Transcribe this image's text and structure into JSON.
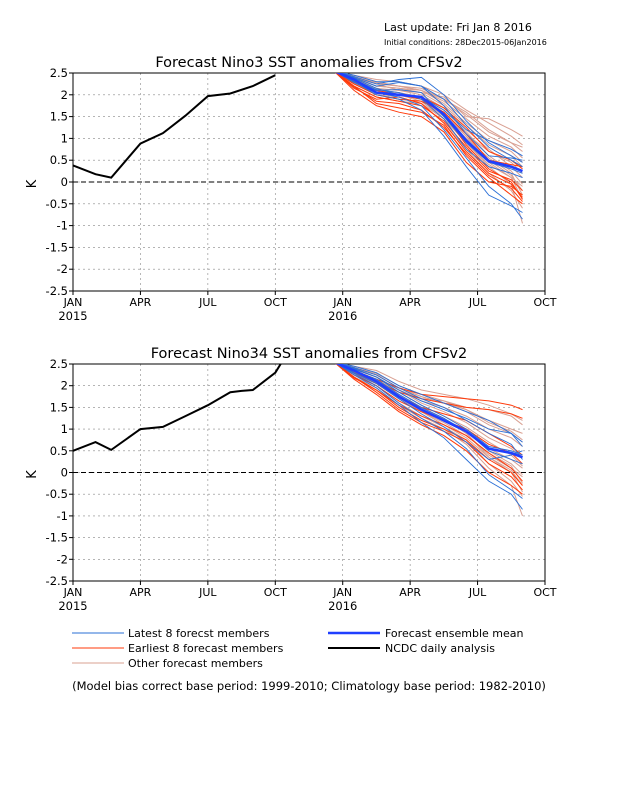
{
  "header": {
    "last_update": "Last update: Fri Jan 8 2016",
    "initial_condition": "Initial conditions: 28Dec2015-06Jan2016"
  },
  "colors": {
    "latest": "#2a6fd6",
    "earliest": "#ff3a0a",
    "other": "#d9a092",
    "mean": "#1f3fff",
    "obs": "#000000"
  },
  "chart_data": [
    {
      "type": "line",
      "title": "Forecast Nino3 SST anomalies from CFSv2",
      "ylabel": "K",
      "ylim": [
        -2.5,
        2.5
      ],
      "yticks": [
        -2.5,
        -2,
        -1.5,
        -1,
        -0.5,
        0,
        0.5,
        1,
        1.5,
        2,
        2.5
      ],
      "ytick_labels": [
        "-2.5",
        "-2",
        "-1.5",
        "-1",
        "-0.5",
        "0",
        "0.5",
        "1",
        "1.5",
        "2",
        "2.5"
      ],
      "xlim": [
        0,
        21
      ],
      "xticks": [
        0,
        3,
        6,
        9,
        12,
        15,
        18,
        21
      ],
      "xtick_labels": [
        "JAN",
        "APR",
        "JUL",
        "OCT",
        "JAN",
        "APR",
        "JUL",
        "OCT"
      ],
      "year_labels": [
        {
          "x": 0,
          "label": "2015"
        },
        {
          "x": 12,
          "label": "2016"
        }
      ],
      "zero_line": true,
      "grid": "dashed",
      "observed": {
        "name": "NCDC daily analysis",
        "x": [
          0,
          1,
          1.7,
          3,
          4,
          5,
          6,
          7,
          8,
          9
        ],
        "y": [
          0.38,
          0.18,
          0.1,
          0.88,
          1.12,
          1.52,
          1.97,
          2.03,
          2.2,
          2.45
        ]
      },
      "mean": {
        "name": "Forecast ensemble mean",
        "x": [
          11.6,
          12.5,
          13.5,
          14.5,
          15.5,
          16.5,
          17.5,
          18.5,
          19.5,
          20
        ],
        "y": [
          2.55,
          2.35,
          2.05,
          2.0,
          1.95,
          1.55,
          0.95,
          0.48,
          0.35,
          0.25
        ]
      },
      "latest": {
        "name": "Latest 8 forecst members",
        "x": [
          11.6,
          12.5,
          13.5,
          14.5,
          15.5,
          16.5,
          17.5,
          18.5,
          19.5,
          20
        ],
        "members": [
          [
            2.55,
            2.42,
            2.25,
            2.35,
            2.4,
            2.0,
            1.4,
            0.9,
            0.6,
            0.45
          ],
          [
            2.55,
            2.35,
            2.12,
            2.05,
            1.9,
            1.45,
            0.75,
            0.35,
            0.2,
            0.1
          ],
          [
            2.55,
            2.4,
            2.2,
            2.28,
            2.2,
            1.75,
            1.1,
            0.6,
            0.55,
            0.5
          ],
          [
            2.55,
            2.28,
            2.05,
            1.95,
            1.75,
            1.2,
            0.55,
            -0.1,
            -0.5,
            -0.85
          ],
          [
            2.55,
            2.38,
            2.15,
            2.0,
            1.95,
            1.65,
            1.2,
            0.95,
            0.75,
            0.6
          ],
          [
            2.55,
            2.3,
            2.0,
            1.9,
            1.65,
            1.05,
            0.35,
            -0.3,
            -0.55,
            -0.7
          ],
          [
            2.55,
            2.33,
            2.1,
            2.12,
            2.05,
            1.5,
            0.9,
            0.45,
            0.3,
            0.2
          ],
          [
            2.55,
            2.45,
            2.3,
            2.3,
            2.2,
            1.9,
            1.3,
            0.8,
            0.5,
            0.35
          ]
        ]
      },
      "earliest": {
        "name": "Earliest 8 forecast members",
        "x": [
          11.6,
          12.5,
          13.5,
          14.5,
          15.5,
          16.5,
          17.5,
          18.5,
          19.5,
          20
        ],
        "members": [
          [
            2.55,
            2.2,
            1.8,
            1.7,
            1.6,
            1.3,
            0.6,
            0.1,
            -0.3,
            -0.5
          ],
          [
            2.55,
            2.15,
            1.9,
            1.95,
            1.8,
            1.35,
            0.7,
            0.2,
            -0.05,
            -0.35
          ],
          [
            2.55,
            2.3,
            2.1,
            2.0,
            1.9,
            1.55,
            0.85,
            0.3,
            0.0,
            -0.4
          ],
          [
            2.55,
            2.1,
            1.75,
            1.6,
            1.5,
            1.15,
            0.45,
            0.0,
            -0.1,
            -0.3
          ],
          [
            2.55,
            2.25,
            2.0,
            1.9,
            1.85,
            1.6,
            1.1,
            0.5,
            0.4,
            0.35
          ],
          [
            2.55,
            2.2,
            1.95,
            1.85,
            1.75,
            1.4,
            0.8,
            0.25,
            0.05,
            -0.2
          ],
          [
            2.55,
            2.28,
            2.05,
            2.0,
            1.95,
            1.7,
            1.25,
            0.7,
            0.5,
            0.3
          ],
          [
            2.55,
            2.18,
            1.85,
            1.8,
            1.65,
            1.25,
            0.65,
            0.15,
            -0.15,
            -0.45
          ]
        ]
      },
      "other": {
        "name": "Other forecast members",
        "x": [
          11.6,
          12.5,
          13.5,
          14.5,
          15.5,
          16.5,
          17.5,
          18.5,
          19.5,
          20
        ],
        "members": [
          [
            2.55,
            2.45,
            2.3,
            2.2,
            2.15,
            1.9,
            1.6,
            1.2,
            0.9,
            0.8
          ],
          [
            2.55,
            2.4,
            2.25,
            2.1,
            2.05,
            1.95,
            1.5,
            1.45,
            1.2,
            1.05
          ],
          [
            2.55,
            2.3,
            2.1,
            2.05,
            1.9,
            1.6,
            1.1,
            0.7,
            0.45,
            0.2
          ],
          [
            2.55,
            2.35,
            2.15,
            2.0,
            1.85,
            1.45,
            0.9,
            0.4,
            0.1,
            -0.1
          ],
          [
            2.55,
            2.25,
            2.0,
            1.95,
            1.8,
            1.35,
            0.75,
            0.2,
            -0.2,
            -0.6
          ],
          [
            2.55,
            2.4,
            2.2,
            2.15,
            2.1,
            1.8,
            1.35,
            0.95,
            0.7,
            0.45
          ],
          [
            2.55,
            2.3,
            2.05,
            2.0,
            1.9,
            1.5,
            1.0,
            0.55,
            0.2,
            -0.3
          ],
          [
            2.55,
            2.42,
            2.28,
            2.2,
            2.1,
            1.85,
            1.45,
            1.05,
            0.8,
            0.55
          ],
          [
            2.55,
            2.35,
            2.15,
            2.1,
            2.0,
            1.7,
            1.2,
            0.75,
            0.35,
            0.1
          ],
          [
            2.55,
            2.2,
            1.95,
            1.85,
            1.8,
            1.45,
            0.9,
            0.35,
            -0.05,
            -0.95
          ],
          [
            2.55,
            2.45,
            2.35,
            2.3,
            2.2,
            2.0,
            1.65,
            1.35,
            1.05,
            0.85
          ],
          [
            2.55,
            2.3,
            2.1,
            2.05,
            1.95,
            1.65,
            1.15,
            0.6,
            0.25,
            -0.05
          ],
          [
            2.55,
            2.38,
            2.2,
            2.15,
            2.05,
            1.75,
            1.3,
            0.85,
            0.6,
            0.35
          ],
          [
            2.55,
            2.25,
            2.05,
            2.0,
            1.9,
            1.55,
            1.05,
            0.5,
            0.15,
            -0.2
          ],
          [
            2.55,
            2.4,
            2.25,
            2.2,
            2.1,
            1.9,
            1.55,
            1.15,
            0.9,
            0.7
          ],
          [
            2.55,
            2.32,
            2.12,
            2.05,
            1.95,
            1.6,
            1.05,
            0.45,
            0.1,
            -0.4
          ]
        ]
      }
    },
    {
      "type": "line",
      "title": "Forecast Nino34 SST anomalies from CFSv2",
      "ylabel": "K",
      "ylim": [
        -2.5,
        2.5
      ],
      "yticks": [
        -2.5,
        -2,
        -1.5,
        -1,
        -0.5,
        0,
        0.5,
        1,
        1.5,
        2,
        2.5
      ],
      "ytick_labels": [
        "-2.5",
        "-2",
        "-1.5",
        "-1",
        "-0.5",
        "0",
        "0.5",
        "1",
        "1.5",
        "2",
        "2.5"
      ],
      "xlim": [
        0,
        21
      ],
      "xticks": [
        0,
        3,
        6,
        9,
        12,
        15,
        18,
        21
      ],
      "xtick_labels": [
        "JAN",
        "APR",
        "JUL",
        "OCT",
        "JAN",
        "APR",
        "JUL",
        "OCT"
      ],
      "year_labels": [
        {
          "x": 0,
          "label": "2015"
        },
        {
          "x": 12,
          "label": "2016"
        }
      ],
      "zero_line": true,
      "grid": "dashed",
      "observed": {
        "name": "NCDC daily analysis",
        "x": [
          0,
          1,
          1.7,
          3,
          4,
          5,
          6,
          7,
          7.5,
          8,
          9,
          9.3
        ],
        "y": [
          0.5,
          0.7,
          0.52,
          1.0,
          1.05,
          1.3,
          1.55,
          1.85,
          1.88,
          1.9,
          2.3,
          2.55
        ]
      },
      "mean": {
        "name": "Forecast ensemble mean",
        "x": [
          11.6,
          12.5,
          13.5,
          14.5,
          15.5,
          16.5,
          17.5,
          18.5,
          19.5,
          20
        ],
        "y": [
          2.55,
          2.35,
          2.1,
          1.75,
          1.45,
          1.2,
          0.95,
          0.55,
          0.45,
          0.35
        ]
      },
      "latest": {
        "name": "Latest 8 forecst members",
        "x": [
          11.6,
          12.5,
          13.5,
          14.5,
          15.5,
          16.5,
          17.5,
          18.5,
          19.5,
          20
        ],
        "members": [
          [
            2.55,
            2.45,
            2.3,
            2.0,
            1.8,
            1.6,
            1.4,
            1.2,
            0.9,
            0.6
          ],
          [
            2.55,
            2.38,
            2.2,
            1.85,
            1.55,
            1.3,
            1.0,
            0.6,
            0.5,
            0.4
          ],
          [
            2.55,
            2.3,
            2.05,
            1.7,
            1.35,
            1.05,
            0.7,
            0.3,
            0.4,
            0.5
          ],
          [
            2.55,
            2.25,
            1.95,
            1.55,
            1.15,
            0.8,
            0.3,
            -0.2,
            -0.5,
            -0.85
          ],
          [
            2.55,
            2.4,
            2.2,
            1.9,
            1.65,
            1.45,
            1.25,
            1.0,
            0.9,
            0.7
          ],
          [
            2.55,
            2.28,
            2.0,
            1.6,
            1.25,
            0.95,
            0.55,
            -0.05,
            -0.4,
            -0.6
          ],
          [
            2.55,
            2.35,
            2.15,
            1.8,
            1.5,
            1.25,
            0.95,
            0.5,
            0.3,
            0.2
          ],
          [
            2.55,
            2.42,
            2.25,
            1.95,
            1.7,
            1.5,
            1.2,
            0.9,
            0.65,
            0.3
          ]
        ]
      },
      "earliest": {
        "name": "Earliest 8 forecast members",
        "x": [
          11.6,
          12.5,
          13.5,
          14.5,
          15.5,
          16.5,
          17.5,
          18.5,
          19.5,
          20
        ],
        "members": [
          [
            2.55,
            2.3,
            2.1,
            1.85,
            1.7,
            1.6,
            1.5,
            1.45,
            1.35,
            1.25
          ],
          [
            2.55,
            2.2,
            1.9,
            1.5,
            1.2,
            1.0,
            0.75,
            0.3,
            0.0,
            -0.3
          ],
          [
            2.55,
            2.25,
            2.0,
            1.65,
            1.4,
            1.2,
            1.0,
            0.65,
            0.45,
            0.2
          ],
          [
            2.55,
            2.15,
            1.8,
            1.4,
            1.1,
            0.85,
            0.5,
            0.0,
            -0.3,
            -0.5
          ],
          [
            2.55,
            2.35,
            2.15,
            1.95,
            1.8,
            1.75,
            1.7,
            1.65,
            1.55,
            1.45
          ],
          [
            2.55,
            2.2,
            1.85,
            1.45,
            1.15,
            0.95,
            0.7,
            0.2,
            -0.1,
            -0.4
          ],
          [
            2.55,
            2.3,
            2.05,
            1.75,
            1.5,
            1.35,
            1.2,
            0.9,
            0.6,
            0.4
          ],
          [
            2.55,
            2.18,
            1.9,
            1.55,
            1.3,
            1.1,
            0.85,
            0.45,
            0.1,
            -0.2
          ]
        ]
      },
      "other": {
        "name": "Other forecast members",
        "x": [
          11.6,
          12.5,
          13.5,
          14.5,
          15.5,
          16.5,
          17.5,
          18.5,
          19.5,
          20
        ],
        "members": [
          [
            2.55,
            2.42,
            2.25,
            1.95,
            1.75,
            1.6,
            1.45,
            1.2,
            1.0,
            0.9
          ],
          [
            2.55,
            2.38,
            2.2,
            1.9,
            1.7,
            1.65,
            1.5,
            1.45,
            1.3,
            1.1
          ],
          [
            2.55,
            2.3,
            2.1,
            1.75,
            1.45,
            1.2,
            0.95,
            0.55,
            0.3,
            0.1
          ],
          [
            2.55,
            2.35,
            2.15,
            1.8,
            1.5,
            1.25,
            0.9,
            0.4,
            0.1,
            -0.1
          ],
          [
            2.55,
            2.25,
            2.0,
            1.6,
            1.3,
            1.05,
            0.75,
            0.2,
            -0.2,
            -0.55
          ],
          [
            2.55,
            2.4,
            2.2,
            1.9,
            1.65,
            1.5,
            1.3,
            1.0,
            0.8,
            0.6
          ],
          [
            2.55,
            2.3,
            2.05,
            1.7,
            1.4,
            1.15,
            0.85,
            0.45,
            0.15,
            -0.25
          ],
          [
            2.55,
            2.42,
            2.28,
            2.0,
            1.8,
            1.65,
            1.45,
            1.15,
            0.95,
            0.75
          ],
          [
            2.55,
            2.35,
            2.15,
            1.85,
            1.55,
            1.3,
            1.05,
            0.7,
            0.4,
            0.15
          ],
          [
            2.55,
            2.2,
            1.95,
            1.55,
            1.25,
            1.0,
            0.65,
            0.1,
            -0.3,
            -1.0
          ],
          [
            2.55,
            2.45,
            2.35,
            2.1,
            1.9,
            1.8,
            1.7,
            1.55,
            1.35,
            1.2
          ],
          [
            2.55,
            2.3,
            2.1,
            1.75,
            1.45,
            1.2,
            0.95,
            0.5,
            0.2,
            -0.05
          ],
          [
            2.55,
            2.38,
            2.2,
            1.9,
            1.6,
            1.4,
            1.15,
            0.8,
            0.55,
            0.35
          ],
          [
            2.55,
            2.25,
            2.05,
            1.7,
            1.4,
            1.1,
            0.8,
            0.35,
            0.05,
            -0.3
          ],
          [
            2.55,
            2.4,
            2.25,
            1.95,
            1.75,
            1.6,
            1.4,
            1.1,
            0.9,
            0.7
          ],
          [
            2.55,
            2.32,
            2.12,
            1.8,
            1.5,
            1.25,
            0.9,
            0.35,
            0.0,
            -0.45
          ]
        ]
      }
    }
  ],
  "legend": {
    "latest": "Latest 8 forecst members",
    "earliest": "Earliest 8 forecast members",
    "other": "Other forecast members",
    "mean": "Forecast ensemble mean",
    "obs": "NCDC daily analysis"
  },
  "footnote": "(Model bias correct base period: 1999-2010; Climatology base period: 1982-2010)"
}
